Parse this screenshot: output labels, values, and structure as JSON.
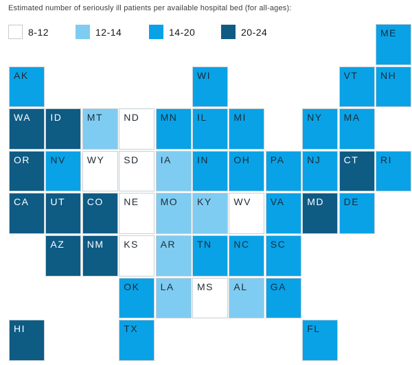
{
  "title": "Estimated number of seriously ill patients per available hospital bed (for all-ages):",
  "chart_data": {
    "type": "heatmap",
    "subtype": "us-tile-grid-choropleth",
    "title": "Estimated number of seriously ill patients per available hospital bed (for all-ages):",
    "legend_position": "top",
    "legend": [
      {
        "label": "8-12",
        "color": "#ffffff"
      },
      {
        "label": "12-14",
        "color": "#7fccf2"
      },
      {
        "label": "14-20",
        "color": "#09a2e7"
      },
      {
        "label": "20-24",
        "color": "#0e5b84"
      }
    ],
    "grid": {
      "rows": 8,
      "cols": 11
    },
    "states": [
      {
        "abbr": "ME",
        "row": 0,
        "col": 10,
        "value": "14-20"
      },
      {
        "abbr": "AK",
        "row": 1,
        "col": 0,
        "value": "14-20"
      },
      {
        "abbr": "WI",
        "row": 1,
        "col": 5,
        "value": "14-20"
      },
      {
        "abbr": "VT",
        "row": 1,
        "col": 9,
        "value": "14-20"
      },
      {
        "abbr": "NH",
        "row": 1,
        "col": 10,
        "value": "14-20"
      },
      {
        "abbr": "WA",
        "row": 2,
        "col": 0,
        "value": "20-24"
      },
      {
        "abbr": "ID",
        "row": 2,
        "col": 1,
        "value": "20-24"
      },
      {
        "abbr": "MT",
        "row": 2,
        "col": 2,
        "value": "12-14"
      },
      {
        "abbr": "ND",
        "row": 2,
        "col": 3,
        "value": "8-12"
      },
      {
        "abbr": "MN",
        "row": 2,
        "col": 4,
        "value": "14-20"
      },
      {
        "abbr": "IL",
        "row": 2,
        "col": 5,
        "value": "14-20"
      },
      {
        "abbr": "MI",
        "row": 2,
        "col": 6,
        "value": "14-20"
      },
      {
        "abbr": "NY",
        "row": 2,
        "col": 8,
        "value": "14-20"
      },
      {
        "abbr": "MA",
        "row": 2,
        "col": 9,
        "value": "14-20"
      },
      {
        "abbr": "OR",
        "row": 3,
        "col": 0,
        "value": "20-24"
      },
      {
        "abbr": "NV",
        "row": 3,
        "col": 1,
        "value": "14-20"
      },
      {
        "abbr": "WY",
        "row": 3,
        "col": 2,
        "value": "8-12"
      },
      {
        "abbr": "SD",
        "row": 3,
        "col": 3,
        "value": "8-12"
      },
      {
        "abbr": "IA",
        "row": 3,
        "col": 4,
        "value": "12-14"
      },
      {
        "abbr": "IN",
        "row": 3,
        "col": 5,
        "value": "14-20"
      },
      {
        "abbr": "OH",
        "row": 3,
        "col": 6,
        "value": "14-20"
      },
      {
        "abbr": "PA",
        "row": 3,
        "col": 7,
        "value": "14-20"
      },
      {
        "abbr": "NJ",
        "row": 3,
        "col": 8,
        "value": "14-20"
      },
      {
        "abbr": "CT",
        "row": 3,
        "col": 9,
        "value": "20-24"
      },
      {
        "abbr": "RI",
        "row": 3,
        "col": 10,
        "value": "14-20"
      },
      {
        "abbr": "CA",
        "row": 4,
        "col": 0,
        "value": "20-24"
      },
      {
        "abbr": "UT",
        "row": 4,
        "col": 1,
        "value": "20-24"
      },
      {
        "abbr": "CO",
        "row": 4,
        "col": 2,
        "value": "20-24"
      },
      {
        "abbr": "NE",
        "row": 4,
        "col": 3,
        "value": "8-12"
      },
      {
        "abbr": "MO",
        "row": 4,
        "col": 4,
        "value": "12-14"
      },
      {
        "abbr": "KY",
        "row": 4,
        "col": 5,
        "value": "12-14"
      },
      {
        "abbr": "WV",
        "row": 4,
        "col": 6,
        "value": "8-12"
      },
      {
        "abbr": "VA",
        "row": 4,
        "col": 7,
        "value": "14-20"
      },
      {
        "abbr": "MD",
        "row": 4,
        "col": 8,
        "value": "20-24"
      },
      {
        "abbr": "DE",
        "row": 4,
        "col": 9,
        "value": "14-20"
      },
      {
        "abbr": "AZ",
        "row": 5,
        "col": 1,
        "value": "20-24"
      },
      {
        "abbr": "NM",
        "row": 5,
        "col": 2,
        "value": "20-24"
      },
      {
        "abbr": "KS",
        "row": 5,
        "col": 3,
        "value": "8-12"
      },
      {
        "abbr": "AR",
        "row": 5,
        "col": 4,
        "value": "12-14"
      },
      {
        "abbr": "TN",
        "row": 5,
        "col": 5,
        "value": "14-20"
      },
      {
        "abbr": "NC",
        "row": 5,
        "col": 6,
        "value": "14-20"
      },
      {
        "abbr": "SC",
        "row": 5,
        "col": 7,
        "value": "14-20"
      },
      {
        "abbr": "OK",
        "row": 6,
        "col": 3,
        "value": "14-20"
      },
      {
        "abbr": "LA",
        "row": 6,
        "col": 4,
        "value": "12-14"
      },
      {
        "abbr": "MS",
        "row": 6,
        "col": 5,
        "value": "8-12"
      },
      {
        "abbr": "AL",
        "row": 6,
        "col": 6,
        "value": "12-14"
      },
      {
        "abbr": "GA",
        "row": 6,
        "col": 7,
        "value": "14-20"
      },
      {
        "abbr": "HI",
        "row": 7,
        "col": 0,
        "value": "20-24"
      },
      {
        "abbr": "TX",
        "row": 7,
        "col": 3,
        "value": "14-20"
      },
      {
        "abbr": "FL",
        "row": 7,
        "col": 8,
        "value": "14-20"
      }
    ],
    "text_colors": {
      "8-12": "#222c35",
      "12-14": "#222c35",
      "14-20": "#1c2b35",
      "20-24": "#ffffff"
    }
  }
}
